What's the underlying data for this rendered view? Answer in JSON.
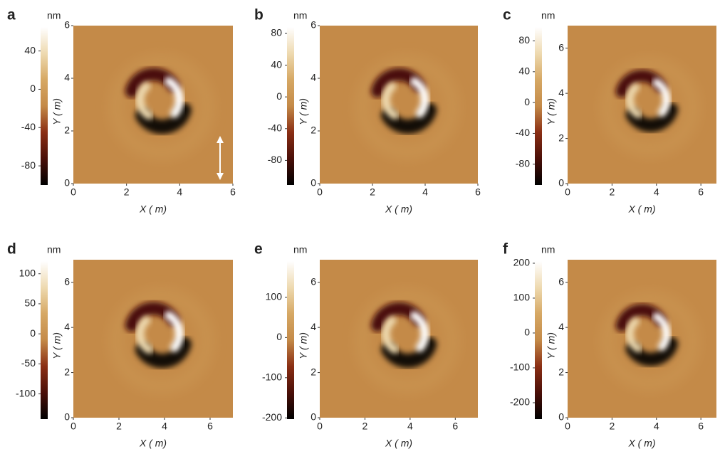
{
  "colormap": [
    "#000000",
    "#4a0f08",
    "#8a2e14",
    "#c48a48",
    "#d6a864",
    "#eedab0",
    "#ffffff"
  ],
  "chart_data": [
    {
      "type": "image",
      "panel": "a",
      "colorbar_label": "nm",
      "clim": [
        -100,
        65
      ],
      "cticks": [
        40,
        0,
        -40,
        -80
      ],
      "xlim": [
        0,
        6
      ],
      "ylim": [
        0,
        6
      ],
      "xticks": [
        0,
        2,
        4,
        6
      ],
      "yticks": [
        0,
        2,
        4,
        6
      ],
      "xlabel": "X ( m)",
      "ylabel": "Y ( m)"
    },
    {
      "type": "image",
      "panel": "b",
      "colorbar_label": "nm",
      "clim": [
        -111,
        88
      ],
      "cticks": [
        80,
        40,
        0,
        -40,
        -80
      ],
      "xlim": [
        0,
        6
      ],
      "ylim": [
        0,
        6
      ],
      "xticks": [
        0,
        2,
        4,
        6
      ],
      "yticks": [
        0,
        2,
        4,
        6
      ],
      "xlabel": "X ( m)",
      "ylabel": "Y ( m)"
    },
    {
      "type": "image",
      "panel": "c",
      "colorbar_label": "nm",
      "clim": [
        -107,
        98
      ],
      "cticks": [
        80,
        40,
        0,
        -40,
        -80
      ],
      "xlim": [
        0,
        6.7
      ],
      "ylim": [
        0,
        7
      ],
      "xticks": [
        0,
        2,
        4,
        6
      ],
      "yticks": [
        0,
        2,
        4,
        6
      ],
      "xlabel": "X ( m)",
      "ylabel": "Y ( m)"
    },
    {
      "type": "image",
      "panel": "d",
      "colorbar_label": "nm",
      "clim": [
        -142,
        121
      ],
      "cticks": [
        100,
        50,
        0,
        -50,
        -100
      ],
      "xlim": [
        0,
        7
      ],
      "ylim": [
        0,
        7
      ],
      "xticks": [
        0,
        2,
        4,
        6
      ],
      "yticks": [
        0,
        2,
        4,
        6
      ],
      "xlabel": "X ( m)",
      "ylabel": "Y ( m)"
    },
    {
      "type": "image",
      "panel": "e",
      "colorbar_label": "nm",
      "clim": [
        -203,
        190
      ],
      "cticks": [
        100,
        0,
        -100,
        -200
      ],
      "xlim": [
        0,
        7
      ],
      "ylim": [
        0,
        7
      ],
      "xticks": [
        0,
        2,
        4,
        6
      ],
      "yticks": [
        0,
        2,
        4,
        6
      ],
      "xlabel": "X ( m)",
      "ylabel": "Y ( m)"
    },
    {
      "type": "image",
      "panel": "f",
      "colorbar_label": "nm",
      "clim": [
        -247,
        206
      ],
      "cticks": [
        200,
        100,
        0,
        -100,
        -200
      ],
      "xlim": [
        0,
        6.7
      ],
      "ylim": [
        0,
        7
      ],
      "xticks": [
        0,
        2,
        4,
        6
      ],
      "yticks": [
        0,
        2,
        4,
        6
      ],
      "xlabel": "X ( m)",
      "ylabel": "Y ( m)"
    }
  ]
}
